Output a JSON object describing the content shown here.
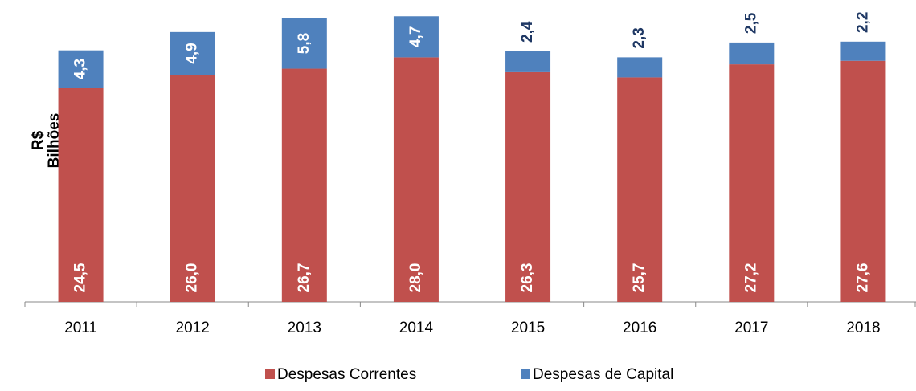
{
  "chart_data": {
    "type": "stacked-bar",
    "ylabel": [
      "R$",
      "Bilhões"
    ],
    "categories": [
      "2011",
      "2012",
      "2013",
      "2014",
      "2015",
      "2016",
      "2017",
      "2018"
    ],
    "series": [
      {
        "name": "Despesas Correntes",
        "color": "#c0504d",
        "values": [
          24.5,
          26.0,
          26.7,
          28.0,
          26.3,
          25.7,
          27.2,
          27.6
        ],
        "value_labels": [
          "24,5",
          "26,0",
          "26,7",
          "28,0",
          "26,3",
          "25,7",
          "27,2",
          "27,6"
        ]
      },
      {
        "name": "Despesas de Capital",
        "color": "#4f81bd",
        "values": [
          4.3,
          4.9,
          5.8,
          4.7,
          2.4,
          2.3,
          2.5,
          2.2
        ],
        "value_labels": [
          "4,3",
          "4,9",
          "5,8",
          "4,7",
          "2,4",
          "2,3",
          "2,5",
          "2,2"
        ]
      }
    ],
    "ylim": [
      0,
      33
    ]
  }
}
